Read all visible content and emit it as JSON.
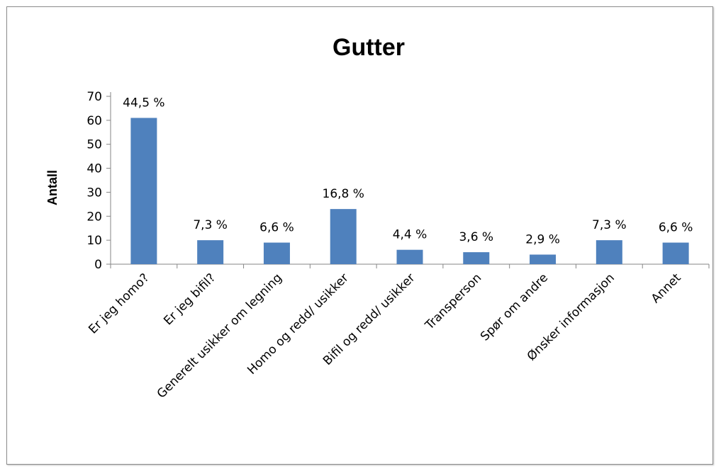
{
  "chart_data": {
    "type": "bar",
    "title": "Gutter",
    "xlabel": "",
    "ylabel": "Antall",
    "ylim": [
      0,
      70
    ],
    "yticks": [
      "0",
      "10",
      "20",
      "30",
      "40",
      "50",
      "60",
      "70"
    ],
    "grid": false,
    "legend": "none",
    "bar_color": "#4f81bd",
    "categories": [
      "Er jeg homo?",
      "Er jeg bifil?",
      "Generelt usikker om legning",
      "Homo og redd/ usikker",
      "Bifil og redd/ usikker",
      "Transperson",
      "Spør om andre",
      "Ønsker informasjon",
      "Annet"
    ],
    "values": [
      61,
      10,
      9,
      23,
      6,
      5,
      4,
      10,
      9
    ],
    "data_labels": [
      "44,5 %",
      "7,3 %",
      "6,6 %",
      "16,8 %",
      "4,4 %",
      "3,6 %",
      "2,9 %",
      "7,3 %",
      "6,6 %"
    ]
  }
}
